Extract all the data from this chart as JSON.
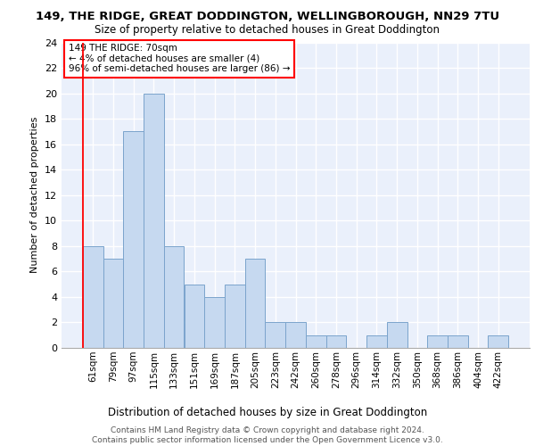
{
  "title_line1": "149, THE RIDGE, GREAT DODDINGTON, WELLINGBOROUGH, NN29 7TU",
  "title_line2": "Size of property relative to detached houses in Great Doddington",
  "xlabel": "Distribution of detached houses by size in Great Doddington",
  "ylabel": "Number of detached properties",
  "footer_line1": "Contains HM Land Registry data © Crown copyright and database right 2024.",
  "footer_line2": "Contains public sector information licensed under the Open Government Licence v3.0.",
  "bin_labels": [
    "61sqm",
    "79sqm",
    "97sqm",
    "115sqm",
    "133sqm",
    "151sqm",
    "169sqm",
    "187sqm",
    "205sqm",
    "223sqm",
    "242sqm",
    "260sqm",
    "278sqm",
    "296sqm",
    "314sqm",
    "332sqm",
    "350sqm",
    "368sqm",
    "386sqm",
    "404sqm",
    "422sqm"
  ],
  "bar_values": [
    8,
    7,
    17,
    20,
    8,
    5,
    4,
    5,
    7,
    2,
    2,
    1,
    1,
    0,
    1,
    2,
    0,
    1,
    1,
    0,
    1
  ],
  "bar_color": "#c6d9f0",
  "bar_edge_color": "#7ba4cc",
  "annotation_text": "149 THE RIDGE: 70sqm\n← 4% of detached houses are smaller (4)\n96% of semi-detached houses are larger (86) →",
  "ylim_max": 24,
  "yticks": [
    0,
    2,
    4,
    6,
    8,
    10,
    12,
    14,
    16,
    18,
    20,
    22,
    24
  ],
  "bg_color": "#eaf0fb",
  "grid_color": "#d0d8e8",
  "red_line_color": "red",
  "title1_fontsize": 9.5,
  "title2_fontsize": 8.5,
  "ylabel_fontsize": 8.0,
  "xlabel_fontsize": 8.5,
  "footer_fontsize": 6.5,
  "tick_fontsize": 7.5,
  "annot_fontsize": 7.5
}
